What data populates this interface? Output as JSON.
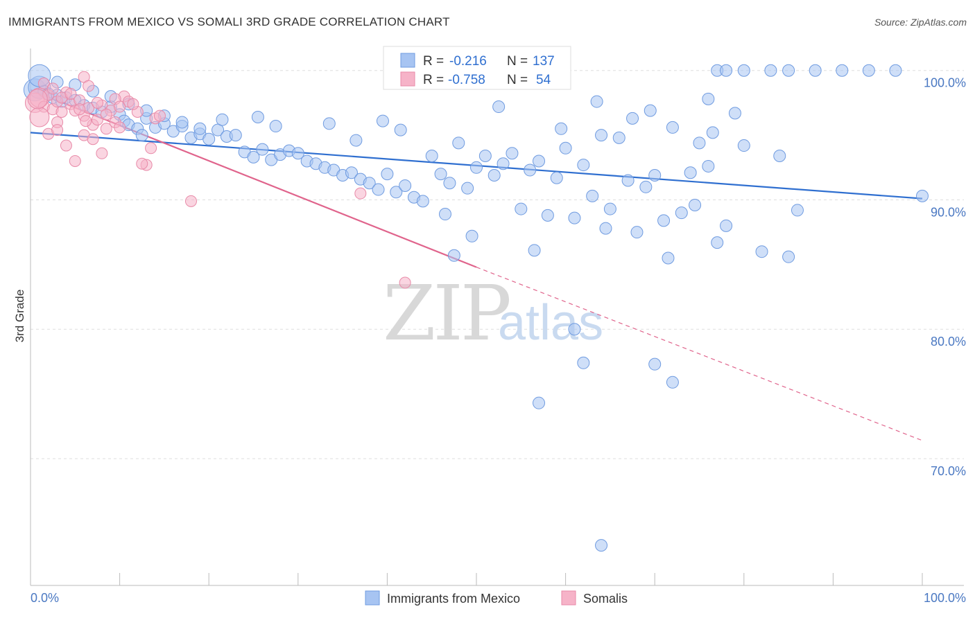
{
  "header": {
    "title": "IMMIGRANTS FROM MEXICO VS SOMALI 3RD GRADE CORRELATION CHART",
    "source": "Source: ZipAtlas.com"
  },
  "watermark": {
    "zip": "ZIP",
    "atlas": "atlas"
  },
  "legend": {
    "r_label": "R =",
    "n_label": "N =",
    "rows": [
      {
        "r": "-0.216",
        "n": "137",
        "color": "#a7c4f2"
      },
      {
        "r": "-0.758",
        "n": "54",
        "color": "#f6b3c8"
      }
    ]
  },
  "bottom_legend": [
    {
      "label": "Immigrants from Mexico",
      "color": "#a7c4f2"
    },
    {
      "label": "Somalis",
      "color": "#f6b3c8"
    }
  ],
  "colors": {
    "blue_point": "#a7c4f2",
    "blue_stroke": "#6f9be0",
    "blue_line": "#2f6fd0",
    "pink_point": "#f6b3c8",
    "pink_stroke": "#e88aa8",
    "pink_line": "#e0648c",
    "grid": "#dddddd",
    "tick_label": "#4a78c2"
  },
  "chart_data": {
    "type": "scatter",
    "title": "IMMIGRANTS FROM MEXICO VS SOMALI 3RD GRADE CORRELATION CHART",
    "xlabel": "",
    "ylabel": "3rd Grade",
    "xlim": [
      0,
      100
    ],
    "ylim": [
      60.2,
      101.7
    ],
    "x_tick_labels": [
      "0.0%",
      "100.0%"
    ],
    "y_ticks": [
      70,
      80,
      90,
      100
    ],
    "y_tick_labels": [
      "70.0%",
      "80.0%",
      "90.0%",
      "100.0%"
    ],
    "grid": true,
    "legend_position": "top-center",
    "series": [
      {
        "name": "Immigrants from Mexico",
        "r": -0.216,
        "n": 137,
        "trend": {
          "x": [
            0,
            100
          ],
          "y": [
            95.2,
            90.1
          ],
          "style": "solid"
        },
        "points": [
          [
            0.5,
            98.5
          ],
          [
            1,
            98.7
          ],
          [
            1.5,
            98.4
          ],
          [
            2,
            98.2
          ],
          [
            2.5,
            97.9
          ],
          [
            3,
            98.1
          ],
          [
            3.5,
            97.6
          ],
          [
            4,
            97.9
          ],
          [
            5,
            97.7
          ],
          [
            6,
            97.3
          ],
          [
            7,
            97.1
          ],
          [
            8,
            96.8
          ],
          [
            9,
            97.2
          ],
          [
            10,
            96.6
          ],
          [
            10.5,
            96.1
          ],
          [
            11,
            95.8
          ],
          [
            12,
            95.5
          ],
          [
            12.5,
            95.0
          ],
          [
            13,
            96.3
          ],
          [
            14,
            95.6
          ],
          [
            15,
            95.9
          ],
          [
            16,
            95.3
          ],
          [
            17,
            95.7
          ],
          [
            18,
            94.8
          ],
          [
            19,
            95.1
          ],
          [
            20,
            94.7
          ],
          [
            21,
            95.4
          ],
          [
            22,
            94.9
          ],
          [
            23,
            95.0
          ],
          [
            24,
            93.7
          ],
          [
            25,
            93.3
          ],
          [
            26,
            93.9
          ],
          [
            27,
            93.1
          ],
          [
            28,
            93.5
          ],
          [
            29,
            93.8
          ],
          [
            30,
            93.6
          ],
          [
            31,
            93.0
          ],
          [
            32,
            92.8
          ],
          [
            33,
            92.5
          ],
          [
            34,
            92.3
          ],
          [
            35,
            91.9
          ],
          [
            36,
            92.1
          ],
          [
            37,
            91.6
          ],
          [
            38,
            91.3
          ],
          [
            39,
            90.8
          ],
          [
            40,
            92.0
          ],
          [
            41,
            90.6
          ],
          [
            42,
            91.1
          ],
          [
            43,
            90.2
          ],
          [
            44,
            89.9
          ],
          [
            45,
            93.4
          ],
          [
            46,
            92.0
          ],
          [
            47,
            91.3
          ],
          [
            48,
            94.4
          ],
          [
            49,
            90.9
          ],
          [
            50,
            92.5
          ],
          [
            51,
            93.4
          ],
          [
            52,
            91.9
          ],
          [
            53,
            92.8
          ],
          [
            54,
            93.6
          ],
          [
            55,
            89.3
          ],
          [
            56,
            92.3
          ],
          [
            57,
            93.0
          ],
          [
            58,
            88.8
          ],
          [
            59,
            91.7
          ],
          [
            60,
            94.0
          ],
          [
            61,
            88.6
          ],
          [
            62,
            92.7
          ],
          [
            63,
            90.3
          ],
          [
            64,
            95.0
          ],
          [
            65,
            89.3
          ],
          [
            66,
            94.8
          ],
          [
            67,
            91.5
          ],
          [
            68,
            87.5
          ],
          [
            69,
            91.0
          ],
          [
            70,
            91.9
          ],
          [
            71,
            88.4
          ],
          [
            72,
            95.6
          ],
          [
            73,
            89.0
          ],
          [
            74,
            92.1
          ],
          [
            75,
            94.4
          ],
          [
            76,
            92.6
          ],
          [
            77,
            86.7
          ],
          [
            78,
            88.0
          ],
          [
            79,
            96.7
          ],
          [
            80,
            94.2
          ],
          [
            82,
            86.0
          ],
          [
            84,
            93.4
          ],
          [
            85,
            85.6
          ],
          [
            86,
            89.2
          ],
          [
            21.5,
            96.2
          ],
          [
            25.5,
            96.4
          ],
          [
            27.5,
            95.7
          ],
          [
            33.5,
            95.9
          ],
          [
            36.5,
            94.6
          ],
          [
            39.5,
            96.1
          ],
          [
            41.5,
            95.4
          ],
          [
            46.5,
            88.9
          ],
          [
            47.5,
            85.7
          ],
          [
            49.5,
            87.2
          ],
          [
            52.5,
            97.2
          ],
          [
            56.5,
            86.1
          ],
          [
            59.5,
            95.5
          ],
          [
            63.5,
            97.6
          ],
          [
            64.5,
            87.8
          ],
          [
            67.5,
            96.3
          ],
          [
            69.5,
            96.9
          ],
          [
            71.5,
            85.5
          ],
          [
            74.5,
            89.6
          ],
          [
            76.5,
            95.2
          ],
          [
            1,
            99.6
          ],
          [
            3,
            99.1
          ],
          [
            5,
            98.9
          ],
          [
            7,
            98.4
          ],
          [
            9,
            98.0
          ],
          [
            11,
            97.4
          ],
          [
            13,
            96.9
          ],
          [
            15,
            96.5
          ],
          [
            17,
            96.0
          ],
          [
            19,
            95.5
          ],
          [
            57,
            74.3
          ],
          [
            61,
            80.0
          ],
          [
            62,
            77.4
          ],
          [
            70,
            77.3
          ],
          [
            72,
            75.9
          ],
          [
            76,
            97.8
          ],
          [
            77,
            100
          ],
          [
            78,
            100
          ],
          [
            80,
            100
          ],
          [
            83,
            100
          ],
          [
            85,
            100
          ],
          [
            88,
            100
          ],
          [
            91,
            100
          ],
          [
            94,
            100
          ],
          [
            97,
            100
          ],
          [
            100,
            90.3
          ],
          [
            64,
            63.3
          ]
        ]
      },
      {
        "name": "Somalis",
        "r": -0.758,
        "n": 54,
        "trend": {
          "x": [
            0,
            50,
            100
          ],
          "y": [
            98.5,
            84.8,
            71.4
          ],
          "style": "solid-then-dashed"
        },
        "points": [
          [
            0.5,
            97.5
          ],
          [
            1,
            97.9
          ],
          [
            1.5,
            97.2
          ],
          [
            2,
            98.1
          ],
          [
            2.5,
            97.0
          ],
          [
            3,
            97.6
          ],
          [
            3.5,
            96.8
          ],
          [
            4,
            98.3
          ],
          [
            4.5,
            97.4
          ],
          [
            5,
            96.9
          ],
          [
            5.5,
            97.7
          ],
          [
            6,
            96.5
          ],
          [
            6.5,
            97.1
          ],
          [
            7,
            95.8
          ],
          [
            7.5,
            96.2
          ],
          [
            8,
            97.3
          ],
          [
            8.5,
            95.5
          ],
          [
            9,
            96.9
          ],
          [
            9.5,
            96.0
          ],
          [
            10,
            95.6
          ],
          [
            1,
            96.4
          ],
          [
            2,
            95.1
          ],
          [
            3,
            96.0
          ],
          [
            4,
            94.2
          ],
          [
            5,
            93.0
          ],
          [
            6,
            95.0
          ],
          [
            7,
            94.7
          ],
          [
            8,
            93.6
          ],
          [
            12,
            96.8
          ],
          [
            13,
            92.7
          ],
          [
            13.5,
            94.0
          ],
          [
            14,
            96.3
          ],
          [
            18,
            89.9
          ],
          [
            37,
            90.5
          ],
          [
            42,
            83.6
          ],
          [
            6,
            99.5
          ],
          [
            6.5,
            98.8
          ],
          [
            10.5,
            98.0
          ],
          [
            11,
            97.6
          ],
          [
            11.5,
            97.4
          ],
          [
            1.5,
            99.0
          ],
          [
            2.5,
            98.6
          ],
          [
            3.5,
            97.9
          ],
          [
            4.5,
            98.2
          ],
          [
            5.5,
            97.0
          ],
          [
            7.5,
            97.5
          ],
          [
            8.5,
            96.6
          ],
          [
            9.5,
            97.8
          ],
          [
            10,
            97.2
          ],
          [
            12.5,
            92.8
          ],
          [
            14.5,
            96.5
          ],
          [
            3,
            95.4
          ],
          [
            0.8,
            97.8
          ],
          [
            6.2,
            96.1
          ]
        ]
      }
    ]
  }
}
